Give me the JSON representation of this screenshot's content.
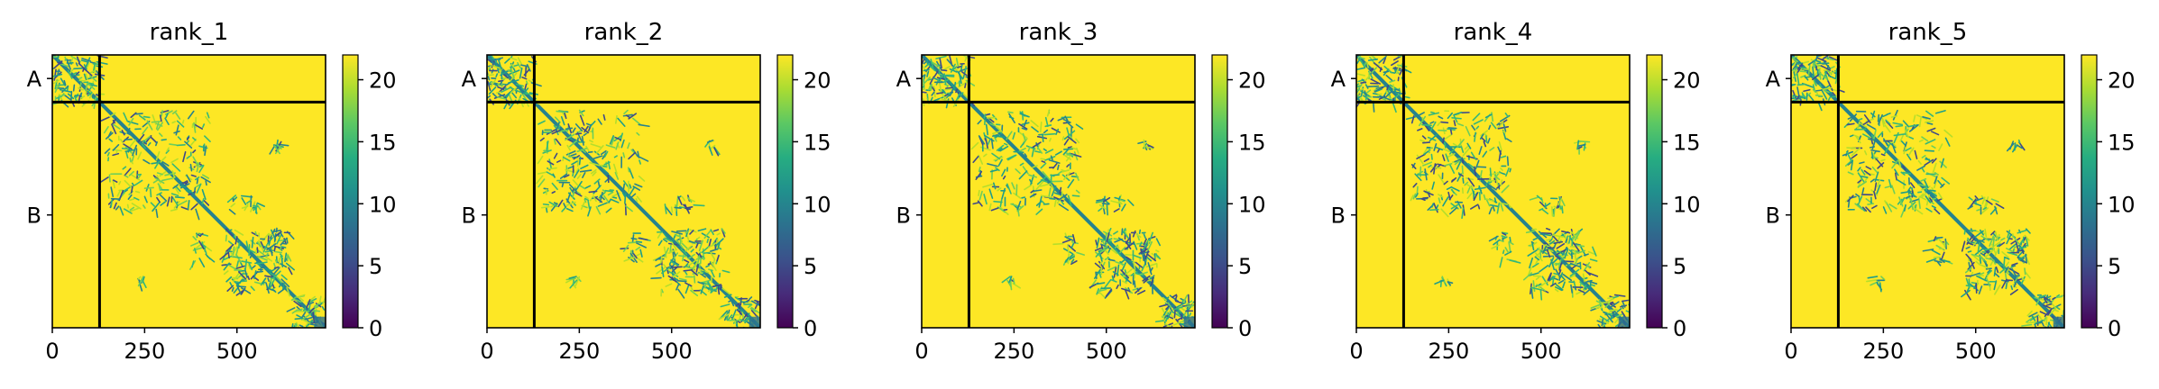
{
  "chart_data": {
    "type": "heatmap",
    "figure_note": "Five predicted aligned error (PAE) style heatmaps for a two-chain complex, one per model rank",
    "chains": [
      {
        "label": "A",
        "start": 0,
        "end": 128
      },
      {
        "label": "B",
        "start": 128,
        "end": 740
      }
    ],
    "matrix_size": 740,
    "x_ticks": [
      0,
      250,
      500
    ],
    "x_tick_labels": [
      "0",
      "250",
      "500"
    ],
    "colorbar": {
      "colormap": "viridis",
      "range": [
        0,
        22
      ],
      "ticks": [
        0,
        5,
        10,
        15,
        20
      ],
      "tick_labels": [
        "0",
        "5",
        "10",
        "15",
        "20"
      ]
    },
    "colors": {
      "low": "#440154",
      "mid": "#21908d",
      "high": "#fde725",
      "boundary": "#000000"
    },
    "panels": [
      {
        "title": "rank_1"
      },
      {
        "title": "rank_2"
      },
      {
        "title": "rank_3"
      },
      {
        "title": "rank_4"
      },
      {
        "title": "rank_5"
      }
    ]
  }
}
